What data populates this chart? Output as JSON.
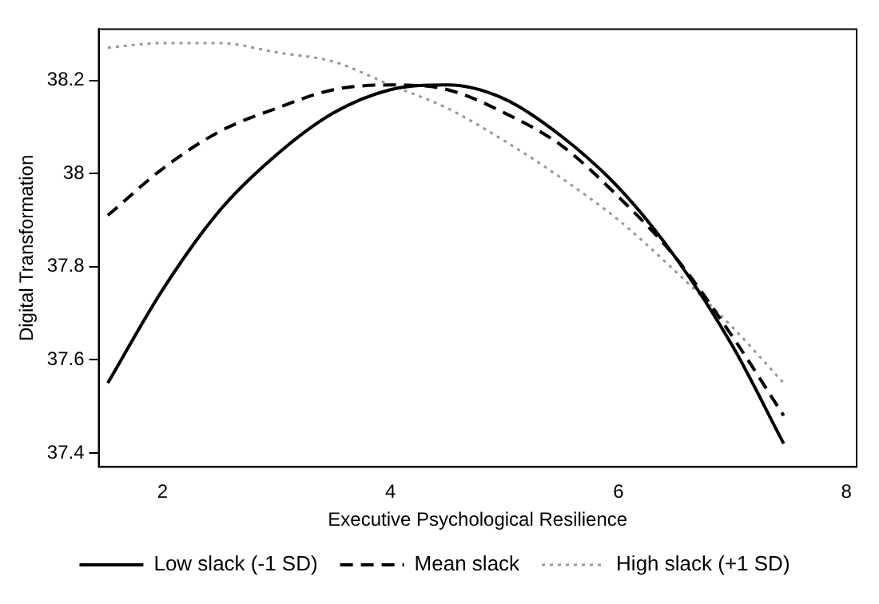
{
  "chart_data": {
    "type": "line",
    "xlabel": "Executive Psychological Resilience",
    "ylabel": "Digital Transformation",
    "x": [
      1.52,
      2,
      2.5,
      3,
      3.5,
      4,
      4.5,
      5,
      5.5,
      6,
      6.5,
      7,
      7.45
    ],
    "series": [
      {
        "name": "Low slack (-1 SD)",
        "color": "#000000",
        "line_style": "solid",
        "values": [
          37.55,
          37.75,
          37.92,
          38.04,
          38.13,
          38.18,
          38.19,
          38.16,
          38.08,
          37.97,
          37.82,
          37.63,
          37.42
        ]
      },
      {
        "name": "Mean slack",
        "color": "#000000",
        "line_style": "dashed",
        "values": [
          37.91,
          38.01,
          38.09,
          38.14,
          38.18,
          38.19,
          38.18,
          38.13,
          38.06,
          37.95,
          37.82,
          37.65,
          37.48
        ]
      },
      {
        "name": "High slack (+1 SD)",
        "color": "#999999",
        "line_style": "dotted",
        "values": [
          38.27,
          38.28,
          38.28,
          38.26,
          38.24,
          38.19,
          38.14,
          38.07,
          37.99,
          37.9,
          37.79,
          37.67,
          37.55
        ]
      }
    ],
    "xlim": [
      1.44,
      8.09
    ],
    "ylim": [
      37.37,
      38.31
    ],
    "xticks": [
      2,
      4,
      6,
      8
    ],
    "yticks": [
      37.4,
      37.6,
      37.8,
      38,
      38.2
    ],
    "grid": false,
    "legend": "bottom",
    "marker": "none"
  }
}
